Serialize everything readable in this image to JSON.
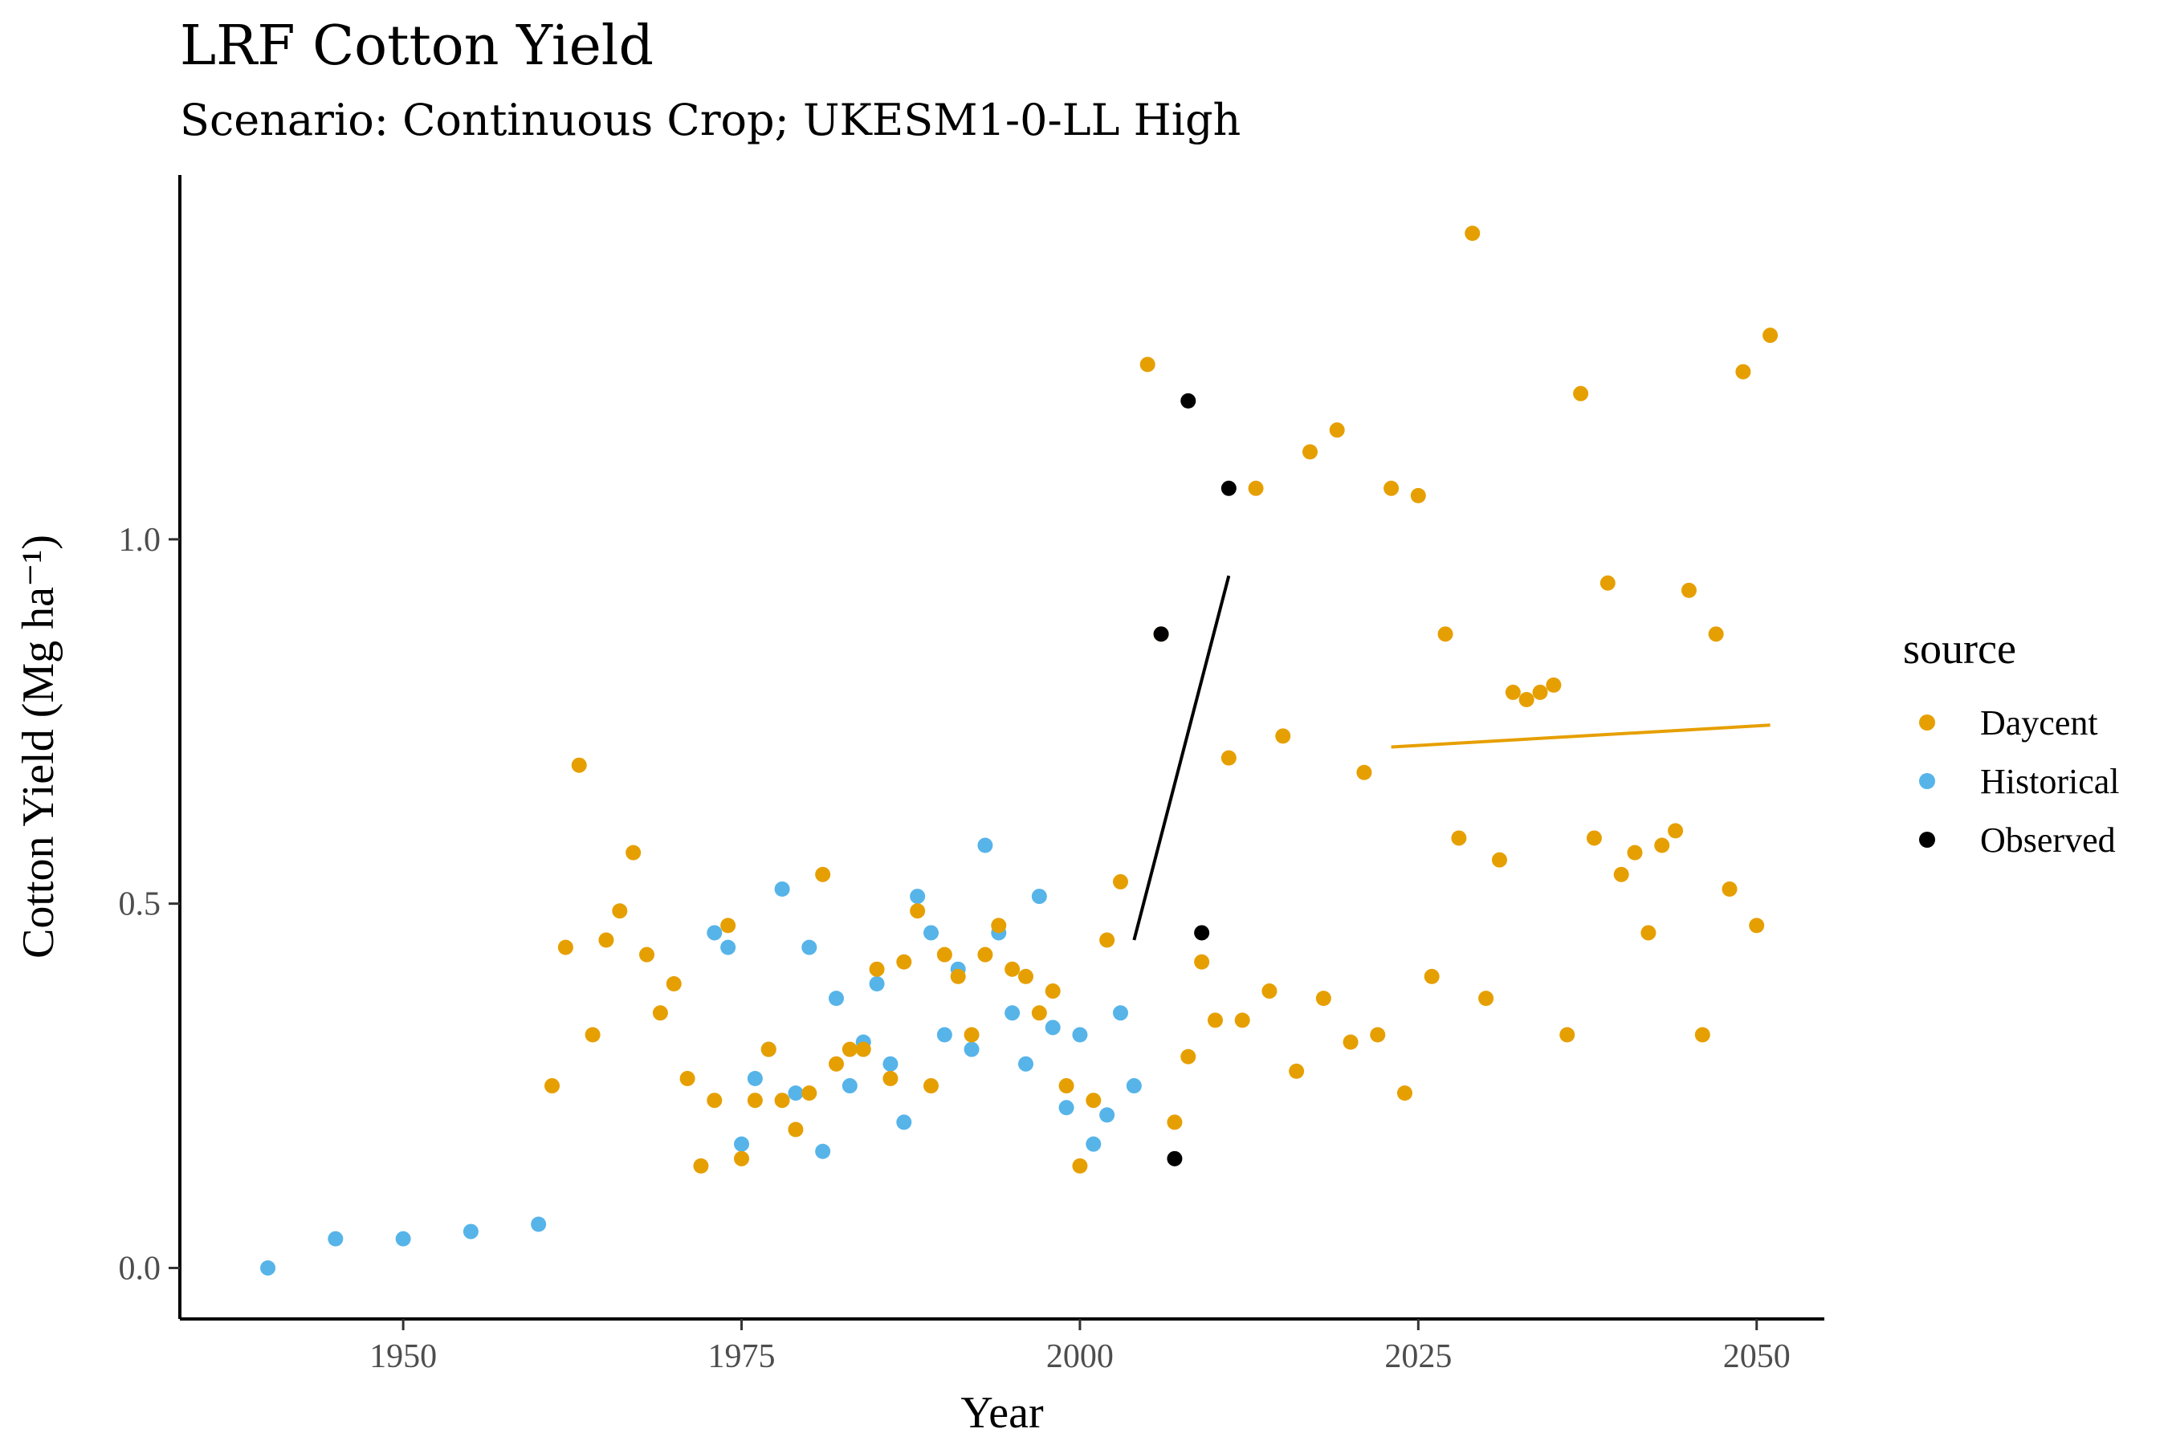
{
  "chart_data": {
    "type": "scatter",
    "title": "LRF Cotton Yield",
    "subtitle": "Scenario: Continuous Crop; UKESM1-0-LL High",
    "xlabel": "Year",
    "ylabel": "Cotton Yield (Mg ha⁻¹)",
    "xlim": [
      1933.5,
      2055
    ],
    "ylim": [
      -0.07,
      1.5
    ],
    "x_ticks": [
      1950,
      1975,
      2000,
      2025,
      2050
    ],
    "x_tick_labels": [
      "1950",
      "1975",
      "2000",
      "2025",
      "2050"
    ],
    "y_ticks": [
      0.0,
      0.5,
      1.0
    ],
    "y_tick_labels": [
      "0.0",
      "0.5",
      "1.0"
    ],
    "grid": false,
    "legend": {
      "title": "source",
      "position": "right",
      "entries": [
        {
          "label": "Daycent",
          "color": "#E69F00"
        },
        {
          "label": "Historical",
          "color": "#56B4E9"
        },
        {
          "label": "Observed",
          "color": "#000000"
        }
      ]
    },
    "series": [
      {
        "name": "Historical",
        "color": "#56B4E9",
        "points": [
          [
            1940,
            0.0
          ],
          [
            1945,
            0.04
          ],
          [
            1950,
            0.04
          ],
          [
            1955,
            0.05
          ],
          [
            1960,
            0.06
          ],
          [
            1973,
            0.46
          ],
          [
            1974,
            0.44
          ],
          [
            1975,
            0.17
          ],
          [
            1976,
            0.26
          ],
          [
            1977,
            0.3
          ],
          [
            1978,
            0.52
          ],
          [
            1979,
            0.24
          ],
          [
            1980,
            0.44
          ],
          [
            1981,
            0.16
          ],
          [
            1982,
            0.37
          ],
          [
            1983,
            0.25
          ],
          [
            1984,
            0.31
          ],
          [
            1985,
            0.39
          ],
          [
            1986,
            0.28
          ],
          [
            1987,
            0.2
          ],
          [
            1988,
            0.51
          ],
          [
            1989,
            0.46
          ],
          [
            1990,
            0.32
          ],
          [
            1991,
            0.41
          ],
          [
            1992,
            0.3
          ],
          [
            1993,
            0.58
          ],
          [
            1994,
            0.46
          ],
          [
            1995,
            0.35
          ],
          [
            1996,
            0.28
          ],
          [
            1997,
            0.51
          ],
          [
            1998,
            0.33
          ],
          [
            1999,
            0.22
          ],
          [
            2000,
            0.32
          ],
          [
            2001,
            0.17
          ],
          [
            2002,
            0.21
          ],
          [
            2003,
            0.35
          ],
          [
            2004,
            0.25
          ]
        ]
      },
      {
        "name": "Daycent",
        "color": "#E69F00",
        "points": [
          [
            1961,
            0.25
          ],
          [
            1962,
            0.44
          ],
          [
            1963,
            0.69
          ],
          [
            1964,
            0.32
          ],
          [
            1965,
            0.45
          ],
          [
            1966,
            0.49
          ],
          [
            1967,
            0.57
          ],
          [
            1968,
            0.43
          ],
          [
            1969,
            0.35
          ],
          [
            1970,
            0.39
          ],
          [
            1971,
            0.26
          ],
          [
            1972,
            0.14
          ],
          [
            1973,
            0.23
          ],
          [
            1974,
            0.47
          ],
          [
            1975,
            0.15
          ],
          [
            1976,
            0.23
          ],
          [
            1977,
            0.3
          ],
          [
            1978,
            0.23
          ],
          [
            1979,
            0.19
          ],
          [
            1980,
            0.24
          ],
          [
            1981,
            0.54
          ],
          [
            1982,
            0.28
          ],
          [
            1983,
            0.3
          ],
          [
            1984,
            0.3
          ],
          [
            1985,
            0.41
          ],
          [
            1986,
            0.26
          ],
          [
            1987,
            0.42
          ],
          [
            1988,
            0.49
          ],
          [
            1989,
            0.25
          ],
          [
            1990,
            0.43
          ],
          [
            1991,
            0.4
          ],
          [
            1992,
            0.32
          ],
          [
            1993,
            0.43
          ],
          [
            1994,
            0.47
          ],
          [
            1995,
            0.41
          ],
          [
            1996,
            0.4
          ],
          [
            1997,
            0.35
          ],
          [
            1998,
            0.38
          ],
          [
            1999,
            0.25
          ],
          [
            2000,
            0.14
          ],
          [
            2001,
            0.23
          ],
          [
            2002,
            0.45
          ],
          [
            2003,
            0.53
          ],
          [
            2005,
            1.24
          ],
          [
            2006,
            0.87
          ],
          [
            2007,
            0.2
          ],
          [
            2008,
            0.29
          ],
          [
            2009,
            0.42
          ],
          [
            2010,
            0.34
          ],
          [
            2011,
            0.7
          ],
          [
            2012,
            0.34
          ],
          [
            2013,
            1.07
          ],
          [
            2014,
            0.38
          ],
          [
            2015,
            0.73
          ],
          [
            2016,
            0.27
          ],
          [
            2017,
            1.12
          ],
          [
            2018,
            0.37
          ],
          [
            2019,
            1.15
          ],
          [
            2020,
            0.31
          ],
          [
            2021,
            0.68
          ],
          [
            2022,
            0.32
          ],
          [
            2023,
            1.07
          ],
          [
            2024,
            0.24
          ],
          [
            2025,
            1.06
          ],
          [
            2026,
            0.4
          ],
          [
            2027,
            0.87
          ],
          [
            2028,
            0.59
          ],
          [
            2029,
            1.42
          ],
          [
            2030,
            0.37
          ],
          [
            2031,
            0.56
          ],
          [
            2032,
            0.79
          ],
          [
            2033,
            0.78
          ],
          [
            2034,
            0.79
          ],
          [
            2035,
            0.8
          ],
          [
            2036,
            0.32
          ],
          [
            2037,
            1.2
          ],
          [
            2038,
            0.59
          ],
          [
            2039,
            0.94
          ],
          [
            2040,
            0.54
          ],
          [
            2041,
            0.57
          ],
          [
            2042,
            0.46
          ],
          [
            2043,
            0.58
          ],
          [
            2044,
            0.6
          ],
          [
            2045,
            0.93
          ],
          [
            2046,
            0.32
          ],
          [
            2047,
            0.87
          ],
          [
            2048,
            0.52
          ],
          [
            2049,
            1.23
          ],
          [
            2050,
            0.47
          ],
          [
            2051,
            1.28
          ]
        ]
      },
      {
        "name": "Observed",
        "color": "#000000",
        "points": [
          [
            2006,
            0.87
          ],
          [
            2007,
            0.15
          ],
          [
            2008,
            1.19
          ],
          [
            2009,
            0.46
          ],
          [
            2011,
            1.07
          ]
        ]
      }
    ],
    "trend_lines": [
      {
        "series": "Observed",
        "color": "#000000",
        "points": [
          [
            2004,
            0.45
          ],
          [
            2011,
            0.95
          ]
        ]
      },
      {
        "series": "Daycent",
        "color": "#E69F00",
        "points": [
          [
            2023,
            0.715
          ],
          [
            2051,
            0.745
          ]
        ]
      }
    ]
  }
}
